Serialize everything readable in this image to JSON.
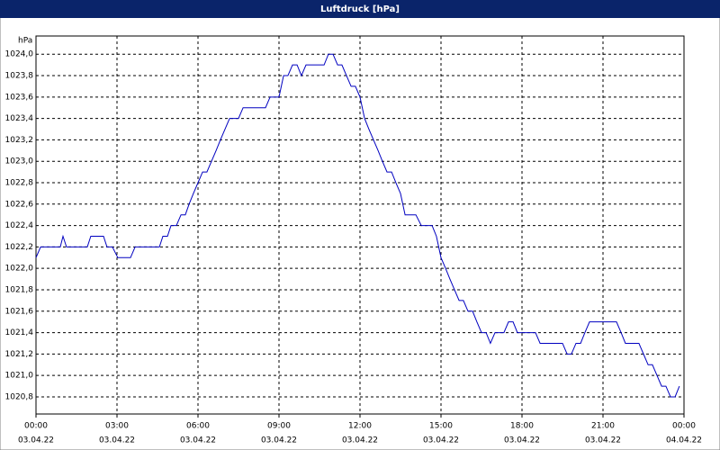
{
  "chart_data": {
    "type": "line",
    "title": "Luftdruck [hPa]",
    "y_unit": "hPa",
    "color": "#0000c0",
    "grid": true,
    "xlim": [
      0,
      24
    ],
    "ylim": [
      1020.64,
      1024.17
    ],
    "xticks": [
      {
        "value": 0,
        "label": "00:00"
      },
      {
        "value": 3,
        "label": "03:00"
      },
      {
        "value": 6,
        "label": "06:00"
      },
      {
        "value": 9,
        "label": "09:00"
      },
      {
        "value": 12,
        "label": "12:00"
      },
      {
        "value": 15,
        "label": "15:00"
      },
      {
        "value": 18,
        "label": "18:00"
      },
      {
        "value": 21,
        "label": "21:00"
      },
      {
        "value": 24,
        "label": "00:00"
      }
    ],
    "xtick_dates": [
      "03.04.22",
      "03.04.22",
      "03.04.22",
      "03.04.22",
      "03.04.22",
      "03.04.22",
      "03.04.22",
      "03.04.22",
      "04.04.22"
    ],
    "yticks": [
      {
        "value": 1020.8,
        "label": "1020,8"
      },
      {
        "value": 1021.0,
        "label": "1021,0"
      },
      {
        "value": 1021.2,
        "label": "1021,2"
      },
      {
        "value": 1021.4,
        "label": "1021,4"
      },
      {
        "value": 1021.6,
        "label": "1021,6"
      },
      {
        "value": 1021.8,
        "label": "1021,8"
      },
      {
        "value": 1022.0,
        "label": "1022,0"
      },
      {
        "value": 1022.2,
        "label": "1022,2"
      },
      {
        "value": 1022.4,
        "label": "1022,4"
      },
      {
        "value": 1022.6,
        "label": "1022,6"
      },
      {
        "value": 1022.8,
        "label": "1022,8"
      },
      {
        "value": 1023.0,
        "label": "1023,0"
      },
      {
        "value": 1023.2,
        "label": "1023,2"
      },
      {
        "value": 1023.4,
        "label": "1023,4"
      },
      {
        "value": 1023.6,
        "label": "1023,6"
      },
      {
        "value": 1023.8,
        "label": "1023,8"
      },
      {
        "value": 1024.0,
        "label": "1024,0"
      }
    ],
    "x": [
      0,
      0.17,
      0.9,
      1,
      1.13,
      1.9,
      2.03,
      2.5,
      2.63,
      2.83,
      3.03,
      3.5,
      3.67,
      4.57,
      4.7,
      4.87,
      5,
      5.2,
      5.37,
      5.53,
      5.67,
      5.83,
      6,
      6.17,
      6.33,
      6.5,
      6.67,
      6.83,
      7,
      7.17,
      7.5,
      7.67,
      8.5,
      8.67,
      9,
      9.17,
      9.33,
      9.5,
      9.67,
      9.83,
      10,
      10.67,
      10.83,
      11,
      11.17,
      11.33,
      11.5,
      11.67,
      11.83,
      12,
      12.17,
      12.33,
      12.5,
      12.67,
      12.83,
      13,
      13.17,
      13.33,
      13.5,
      13.67,
      14.07,
      14.27,
      14.67,
      14.83,
      15,
      15.17,
      15.33,
      15.5,
      15.67,
      15.83,
      16,
      16.17,
      16.33,
      16.5,
      16.67,
      16.83,
      17,
      17.33,
      17.5,
      17.67,
      17.83,
      18.5,
      18.67,
      19.5,
      19.67,
      19.83,
      20,
      20.17,
      20.33,
      20.5,
      21.5,
      21.67,
      21.83,
      22.33,
      22.5,
      22.67,
      22.83,
      23,
      23.17,
      23.33,
      23.5,
      23.67,
      23.83
    ],
    "values": [
      1022.1,
      1022.2,
      1022.2,
      1022.3,
      1022.2,
      1022.2,
      1022.3,
      1022.3,
      1022.2,
      1022.2,
      1022.1,
      1022.1,
      1022.2,
      1022.2,
      1022.3,
      1022.3,
      1022.4,
      1022.4,
      1022.5,
      1022.5,
      1022.6,
      1022.7,
      1022.8,
      1022.9,
      1022.9,
      1023.0,
      1023.1,
      1023.2,
      1023.3,
      1023.4,
      1023.4,
      1023.5,
      1023.5,
      1023.6,
      1023.6,
      1023.8,
      1023.8,
      1023.9,
      1023.9,
      1023.8,
      1023.9,
      1023.9,
      1024.0,
      1024.0,
      1023.9,
      1023.9,
      1023.8,
      1023.7,
      1023.7,
      1023.6,
      1023.4,
      1023.3,
      1023.2,
      1023.1,
      1023.0,
      1022.9,
      1022.9,
      1022.8,
      1022.7,
      1022.5,
      1022.5,
      1022.4,
      1022.4,
      1022.3,
      1022.1,
      1022.0,
      1021.9,
      1021.8,
      1021.7,
      1021.7,
      1021.6,
      1021.6,
      1021.5,
      1021.4,
      1021.4,
      1021.3,
      1021.4,
      1021.4,
      1021.5,
      1021.5,
      1021.4,
      1021.4,
      1021.3,
      1021.3,
      1021.2,
      1021.2,
      1021.3,
      1021.3,
      1021.4,
      1021.5,
      1021.5,
      1021.4,
      1021.3,
      1021.3,
      1021.2,
      1021.1,
      1021.1,
      1021.0,
      1020.9,
      1020.9,
      1020.8,
      1020.8,
      1020.9
    ]
  }
}
